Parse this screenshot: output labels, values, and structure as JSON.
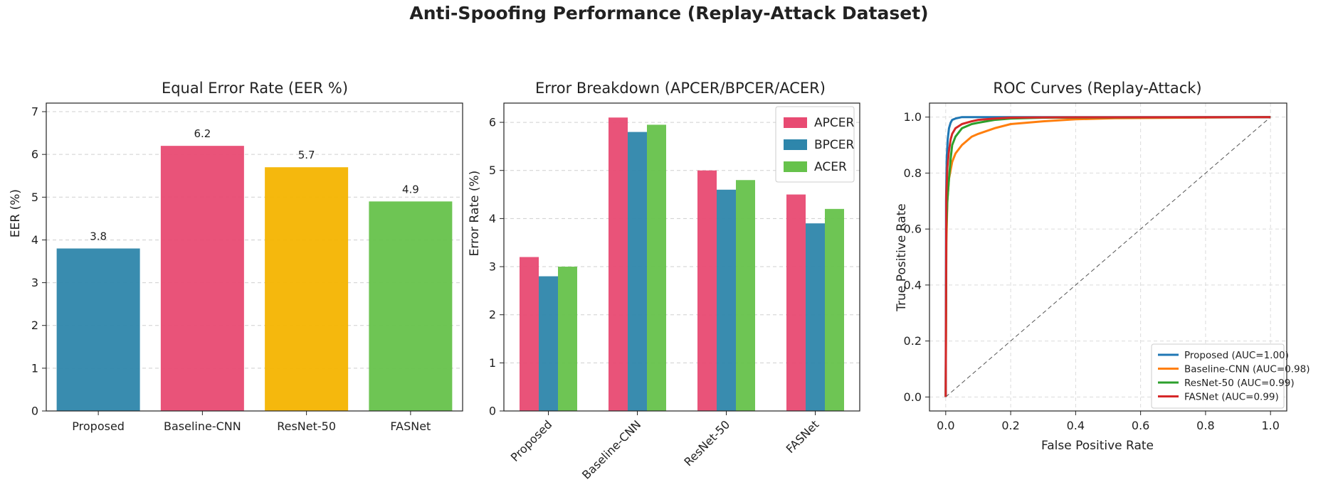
{
  "figure": {
    "title": "Anti-Spoofing Performance (Replay-Attack Dataset)"
  },
  "chart_data": [
    {
      "type": "bar",
      "title": "Equal Error Rate (EER %)",
      "xlabel": "",
      "ylabel": "EER (%)",
      "categories": [
        "Proposed",
        "Baseline-CNN",
        "ResNet-50",
        "FASNet"
      ],
      "values": [
        3.8,
        6.2,
        5.7,
        4.9
      ],
      "value_labels": [
        "3.8",
        "6.2",
        "5.7",
        "4.9"
      ],
      "colors": [
        "#2e86ab",
        "#e84a72",
        "#f4b400",
        "#66c24b"
      ],
      "ylim": [
        0,
        7.2
      ],
      "yticks": [
        0,
        1,
        2,
        3,
        4,
        5,
        6,
        7
      ],
      "grid": "y",
      "legend": null
    },
    {
      "type": "bar",
      "title": "Error Breakdown (APCER/BPCER/ACER)",
      "xlabel": "",
      "ylabel": "Error Rate (%)",
      "categories": [
        "Proposed",
        "Baseline-CNN",
        "ResNet-50",
        "FASNet"
      ],
      "series": [
        {
          "name": "APCER",
          "values": [
            3.2,
            6.1,
            5.0,
            4.5
          ],
          "color": "#e84a72"
        },
        {
          "name": "BPCER",
          "values": [
            2.8,
            5.8,
            4.6,
            3.9
          ],
          "color": "#2e86ab"
        },
        {
          "name": "ACER",
          "values": [
            3.0,
            5.95,
            4.8,
            4.2
          ],
          "color": "#66c24b"
        }
      ],
      "ylim": [
        0,
        6.4
      ],
      "yticks": [
        0,
        1,
        2,
        3,
        4,
        5,
        6
      ],
      "grid": "y",
      "legend": "top-right",
      "xtick_rotation": 45
    },
    {
      "type": "line",
      "title": "ROC Curves (Replay-Attack)",
      "xlabel": "False Positive Rate",
      "ylabel": "True Positive Rate",
      "xlim": [
        -0.05,
        1.05
      ],
      "ylim": [
        -0.05,
        1.05
      ],
      "xticks": [
        0.0,
        0.2,
        0.4,
        0.6,
        0.8,
        1.0
      ],
      "yticks": [
        0.0,
        0.2,
        0.4,
        0.6,
        0.8,
        1.0
      ],
      "tick_labels": [
        "0.0",
        "0.2",
        "0.4",
        "0.6",
        "0.8",
        "1.0"
      ],
      "grid": "both",
      "legend": "bottom-right",
      "series": [
        {
          "name": "Proposed (AUC=1.00)",
          "color": "#1f77b4",
          "x": [
            0,
            0.001,
            0.003,
            0.006,
            0.01,
            0.015,
            0.02,
            0.03,
            0.05,
            0.1,
            0.5,
            1
          ],
          "y": [
            0,
            0.7,
            0.85,
            0.92,
            0.96,
            0.98,
            0.99,
            0.995,
            1.0,
            1.0,
            1.0,
            1.0
          ]
        },
        {
          "name": "Baseline-CNN (AUC=0.98)",
          "color": "#ff7f0e",
          "x": [
            0,
            0.002,
            0.005,
            0.01,
            0.02,
            0.03,
            0.05,
            0.08,
            0.1,
            0.15,
            0.2,
            0.3,
            0.4,
            0.52,
            1
          ],
          "y": [
            0,
            0.55,
            0.7,
            0.78,
            0.84,
            0.87,
            0.9,
            0.93,
            0.94,
            0.96,
            0.975,
            0.985,
            0.992,
            0.996,
            1.0
          ]
        },
        {
          "name": "ResNet-50 (AUC=0.99)",
          "color": "#2ca02c",
          "x": [
            0,
            0.002,
            0.005,
            0.01,
            0.015,
            0.02,
            0.03,
            0.05,
            0.08,
            0.1,
            0.15,
            0.2,
            0.3,
            1
          ],
          "y": [
            0,
            0.6,
            0.7,
            0.78,
            0.85,
            0.9,
            0.93,
            0.96,
            0.975,
            0.98,
            0.99,
            0.995,
            0.998,
            1.0
          ]
        },
        {
          "name": "FASNet (AUC=0.99)",
          "color": "#d62728",
          "x": [
            0,
            0.002,
            0.005,
            0.01,
            0.015,
            0.02,
            0.03,
            0.05,
            0.08,
            0.1,
            0.15,
            0.2,
            0.3,
            1
          ],
          "y": [
            0,
            0.72,
            0.82,
            0.88,
            0.92,
            0.94,
            0.96,
            0.975,
            0.985,
            0.99,
            0.995,
            0.998,
            0.999,
            1.0
          ]
        },
        {
          "name": "",
          "color": "#555555",
          "style": "dashed",
          "x": [
            0,
            1
          ],
          "y": [
            0,
            1
          ]
        }
      ]
    }
  ]
}
